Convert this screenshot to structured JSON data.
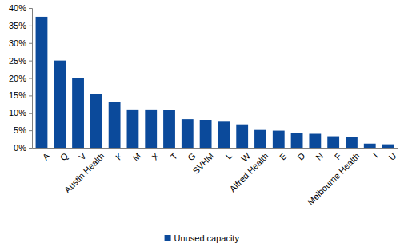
{
  "chart_data": {
    "type": "bar",
    "categories": [
      "A",
      "Q",
      "V",
      "Austin Health",
      "K",
      "M",
      "X",
      "T",
      "G",
      "SVHM",
      "L",
      "W",
      "Alfred Health",
      "E",
      "D",
      "N",
      "F",
      "Melbourne Health",
      "I",
      "U"
    ],
    "series": [
      {
        "name": "Unused capacity",
        "color": "#0b4a9b",
        "values": [
          37.5,
          25,
          20,
          15.5,
          13.2,
          11,
          11,
          10.8,
          8.2,
          8,
          7.7,
          6.7,
          5.1,
          4.9,
          4.3,
          4,
          3.3,
          3,
          1.2,
          1
        ]
      }
    ],
    "ylim": [
      0,
      40
    ],
    "yticks": [
      {
        "value": 0,
        "label": "0%"
      },
      {
        "value": 5,
        "label": "5%"
      },
      {
        "value": 10,
        "label": "10%"
      },
      {
        "value": 15,
        "label": "15%"
      },
      {
        "value": 20,
        "label": "20%"
      },
      {
        "value": 25,
        "label": "25%"
      },
      {
        "value": 30,
        "label": "30%"
      },
      {
        "value": 35,
        "label": "35%"
      },
      {
        "value": 40,
        "label": "40%"
      }
    ],
    "grid": false,
    "legend": "bottom"
  }
}
